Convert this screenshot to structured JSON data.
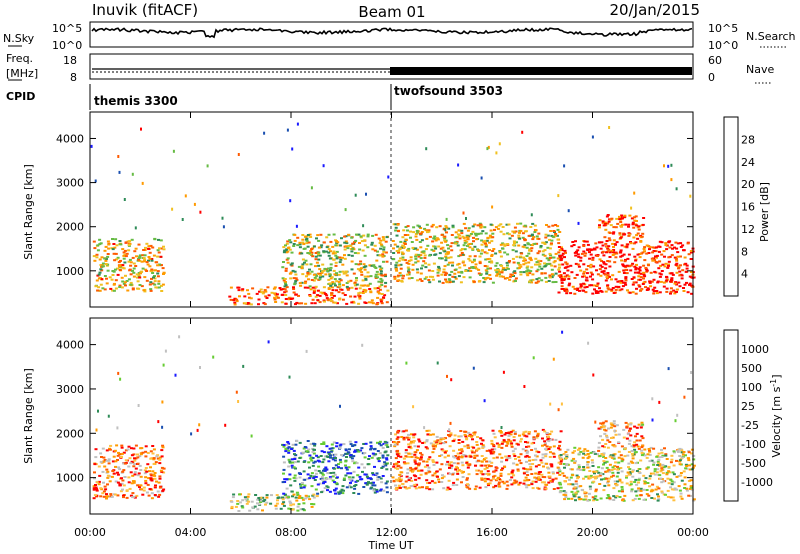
{
  "header": {
    "site": "Inuvik (fitACF)",
    "beam": "Beam 01",
    "date": "20/Jan/2015"
  },
  "status_panels": {
    "nsky_label": "N.Sky",
    "nsky_ticks": [
      "10^5",
      "10^0"
    ],
    "nsearch_label": "N.Search",
    "nsearch_ticks": [
      "10^5",
      "10^0"
    ],
    "freq_label": "Freq.",
    "freq_unit": "[MHz]",
    "freq_ticks": [
      "18",
      "8"
    ],
    "nave_label": "Nave",
    "nave_ticks": [
      "60",
      "0"
    ],
    "cpid_label": "CPID",
    "cpid_modes": [
      {
        "name": "themis 3300",
        "start_hour": 0,
        "end_hour": 12
      },
      {
        "name": "twofsound 3503",
        "start_hour": 12,
        "end_hour": 24
      }
    ]
  },
  "chart_data": [
    {
      "type": "heatmap",
      "title": "",
      "xlabel": "Time UT",
      "ylabel": "Slant Range [km]",
      "x_ticks": [
        "00:00",
        "04:00",
        "08:00",
        "12:00",
        "16:00",
        "20:00",
        "00:00"
      ],
      "xlim_hours": [
        0,
        24
      ],
      "y_ticks": [
        1000,
        2000,
        3000,
        4000
      ],
      "ylim_km": [
        180,
        4600
      ],
      "colorbar": {
        "label": "Power [dB]",
        "ticks": [
          "28",
          "24",
          "20",
          "16",
          "12",
          "8",
          "4"
        ],
        "colors": [
          "#1a1aff",
          "#1a4fb0",
          "#2e8b57",
          "#66bb44",
          "#f0c020",
          "#ff9a00",
          "#ff5a00",
          "#ff0000"
        ]
      },
      "scatter_regions": [
        {
          "t0": 0.1,
          "t1": 2.9,
          "r0": 550,
          "r1": 1750,
          "val": 0.62
        },
        {
          "t0": 5.5,
          "t1": 11.8,
          "r0": 260,
          "r1": 650,
          "val": 0.82
        },
        {
          "t0": 7.6,
          "t1": 11.8,
          "r0": 650,
          "r1": 1850,
          "val": 0.55
        },
        {
          "t0": 12.0,
          "t1": 18.7,
          "r0": 750,
          "r1": 2100,
          "val": 0.58
        },
        {
          "t0": 18.6,
          "t1": 24.0,
          "r0": 500,
          "r1": 1700,
          "val": 0.95
        },
        {
          "t0": 20.2,
          "t1": 22.0,
          "r0": 1700,
          "r1": 2300,
          "val": 0.85
        }
      ]
    },
    {
      "type": "heatmap",
      "title": "",
      "xlabel": "Time UT",
      "ylabel": "Slant Range [km]",
      "x_ticks": [
        "00:00",
        "04:00",
        "08:00",
        "12:00",
        "16:00",
        "20:00",
        "00:00"
      ],
      "xlim_hours": [
        0,
        24
      ],
      "y_ticks": [
        1000,
        2000,
        3000,
        4000
      ],
      "ylim_km": [
        180,
        4600
      ],
      "colorbar": {
        "label": "Velocity [m s^-1]",
        "ticks": [
          "1000",
          "500",
          "100",
          "25",
          "-25",
          "-100",
          "-500",
          "-1000"
        ],
        "colors": [
          "#ff0000",
          "#ff5a00",
          "#ff9a00",
          "#ffc040",
          "#c0c0c0",
          "#66cc33",
          "#2e8b57",
          "#1a4fb0",
          "#1a1aff"
        ]
      },
      "scatter_regions": [
        {
          "t0": 0.1,
          "t1": 2.9,
          "r0": 550,
          "r1": 1750,
          "val": 0.25
        },
        {
          "t0": 5.5,
          "t1": 9.0,
          "r0": 260,
          "r1": 650,
          "val": 0.5
        },
        {
          "t0": 7.6,
          "t1": 11.8,
          "r0": 650,
          "r1": 1850,
          "val": 0.75
        },
        {
          "t0": 12.0,
          "t1": 18.7,
          "r0": 750,
          "r1": 2100,
          "val": 0.25
        },
        {
          "t0": 18.6,
          "t1": 24.0,
          "r0": 500,
          "r1": 1700,
          "val": 0.45
        },
        {
          "t0": 20.2,
          "t1": 22.0,
          "r0": 1700,
          "r1": 2300,
          "val": 0.3
        }
      ]
    }
  ]
}
